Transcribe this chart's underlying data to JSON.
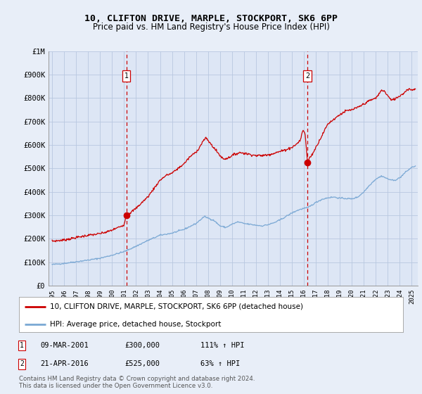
{
  "title": "10, CLIFTON DRIVE, MARPLE, STOCKPORT, SK6 6PP",
  "subtitle": "Price paid vs. HM Land Registry's House Price Index (HPI)",
  "legend_line1": "10, CLIFTON DRIVE, MARPLE, STOCKPORT, SK6 6PP (detached house)",
  "legend_line2": "HPI: Average price, detached house, Stockport",
  "table_rows": [
    {
      "num": "1",
      "date": "09-MAR-2001",
      "price": "£300,000",
      "hpi": "111% ↑ HPI"
    },
    {
      "num": "2",
      "date": "21-APR-2016",
      "price": "£525,000",
      "hpi": "63% ↑ HPI"
    }
  ],
  "footnote1": "Contains HM Land Registry data © Crown copyright and database right 2024.",
  "footnote2": "This data is licensed under the Open Government Licence v3.0.",
  "sale1_year": 2001.19,
  "sale1_price": 300000,
  "sale2_year": 2016.3,
  "sale2_price": 525000,
  "bg_color": "#e8eef8",
  "plot_bg_color": "#dde6f5",
  "red_line_color": "#cc0000",
  "blue_line_color": "#7aa8d4",
  "ylim_max": 1000000,
  "xlim_min": 1994.7,
  "xlim_max": 2025.5
}
